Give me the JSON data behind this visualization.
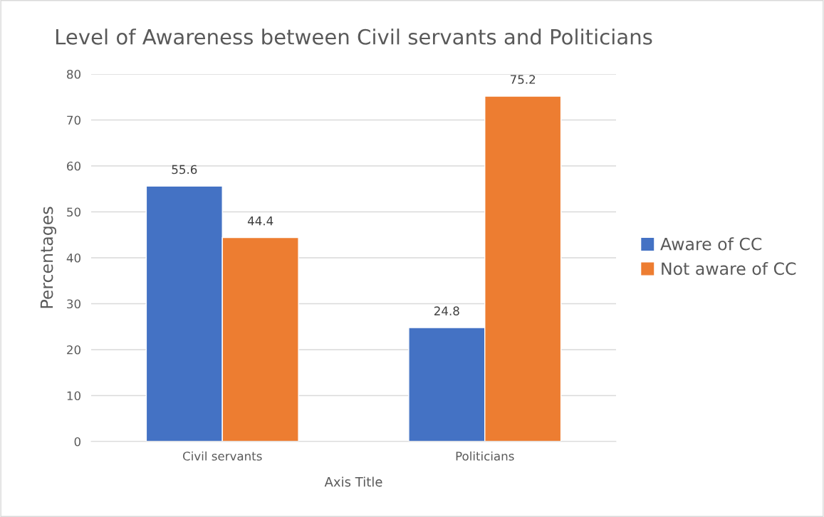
{
  "chart_data": {
    "type": "bar",
    "title": "Level of Awareness between Civil servants and Politicians",
    "xlabel": "Axis Title",
    "ylabel": "Percentages",
    "categories": [
      "Civil servants",
      "Politicians"
    ],
    "series": [
      {
        "name": "Aware of CC",
        "color": "#4472c4",
        "values": [
          55.6,
          24.8
        ]
      },
      {
        "name": "Not aware of CC",
        "color": "#ed7d31",
        "values": [
          44.4,
          75.2
        ]
      }
    ],
    "ylim": [
      0,
      80
    ],
    "yticks": [
      0,
      10,
      20,
      30,
      40,
      50,
      60,
      70,
      80
    ],
    "grid": "y",
    "legend": "right",
    "data_labels": true
  }
}
